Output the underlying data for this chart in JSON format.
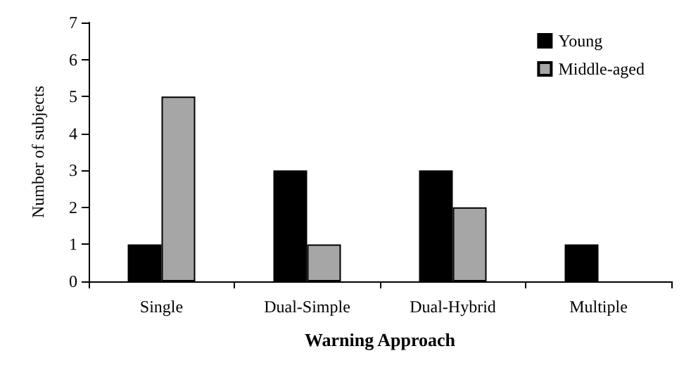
{
  "chart_data": {
    "type": "bar",
    "xlabel": "Warning Approach",
    "ylabel": "Number of subjects",
    "categories": [
      "Single",
      "Dual-Simple",
      "Dual-Hybrid",
      "Multiple"
    ],
    "series": [
      {
        "name": "Young",
        "color": "#000000",
        "values": [
          1,
          3,
          3,
          1
        ]
      },
      {
        "name": "Middle-aged",
        "color": "#a6a6a6",
        "values": [
          5,
          1,
          2,
          0
        ]
      }
    ],
    "ylim": [
      0,
      7
    ],
    "yticks": [
      0,
      1,
      2,
      3,
      4,
      5,
      6,
      7
    ],
    "grid": false,
    "legend": "top right"
  }
}
